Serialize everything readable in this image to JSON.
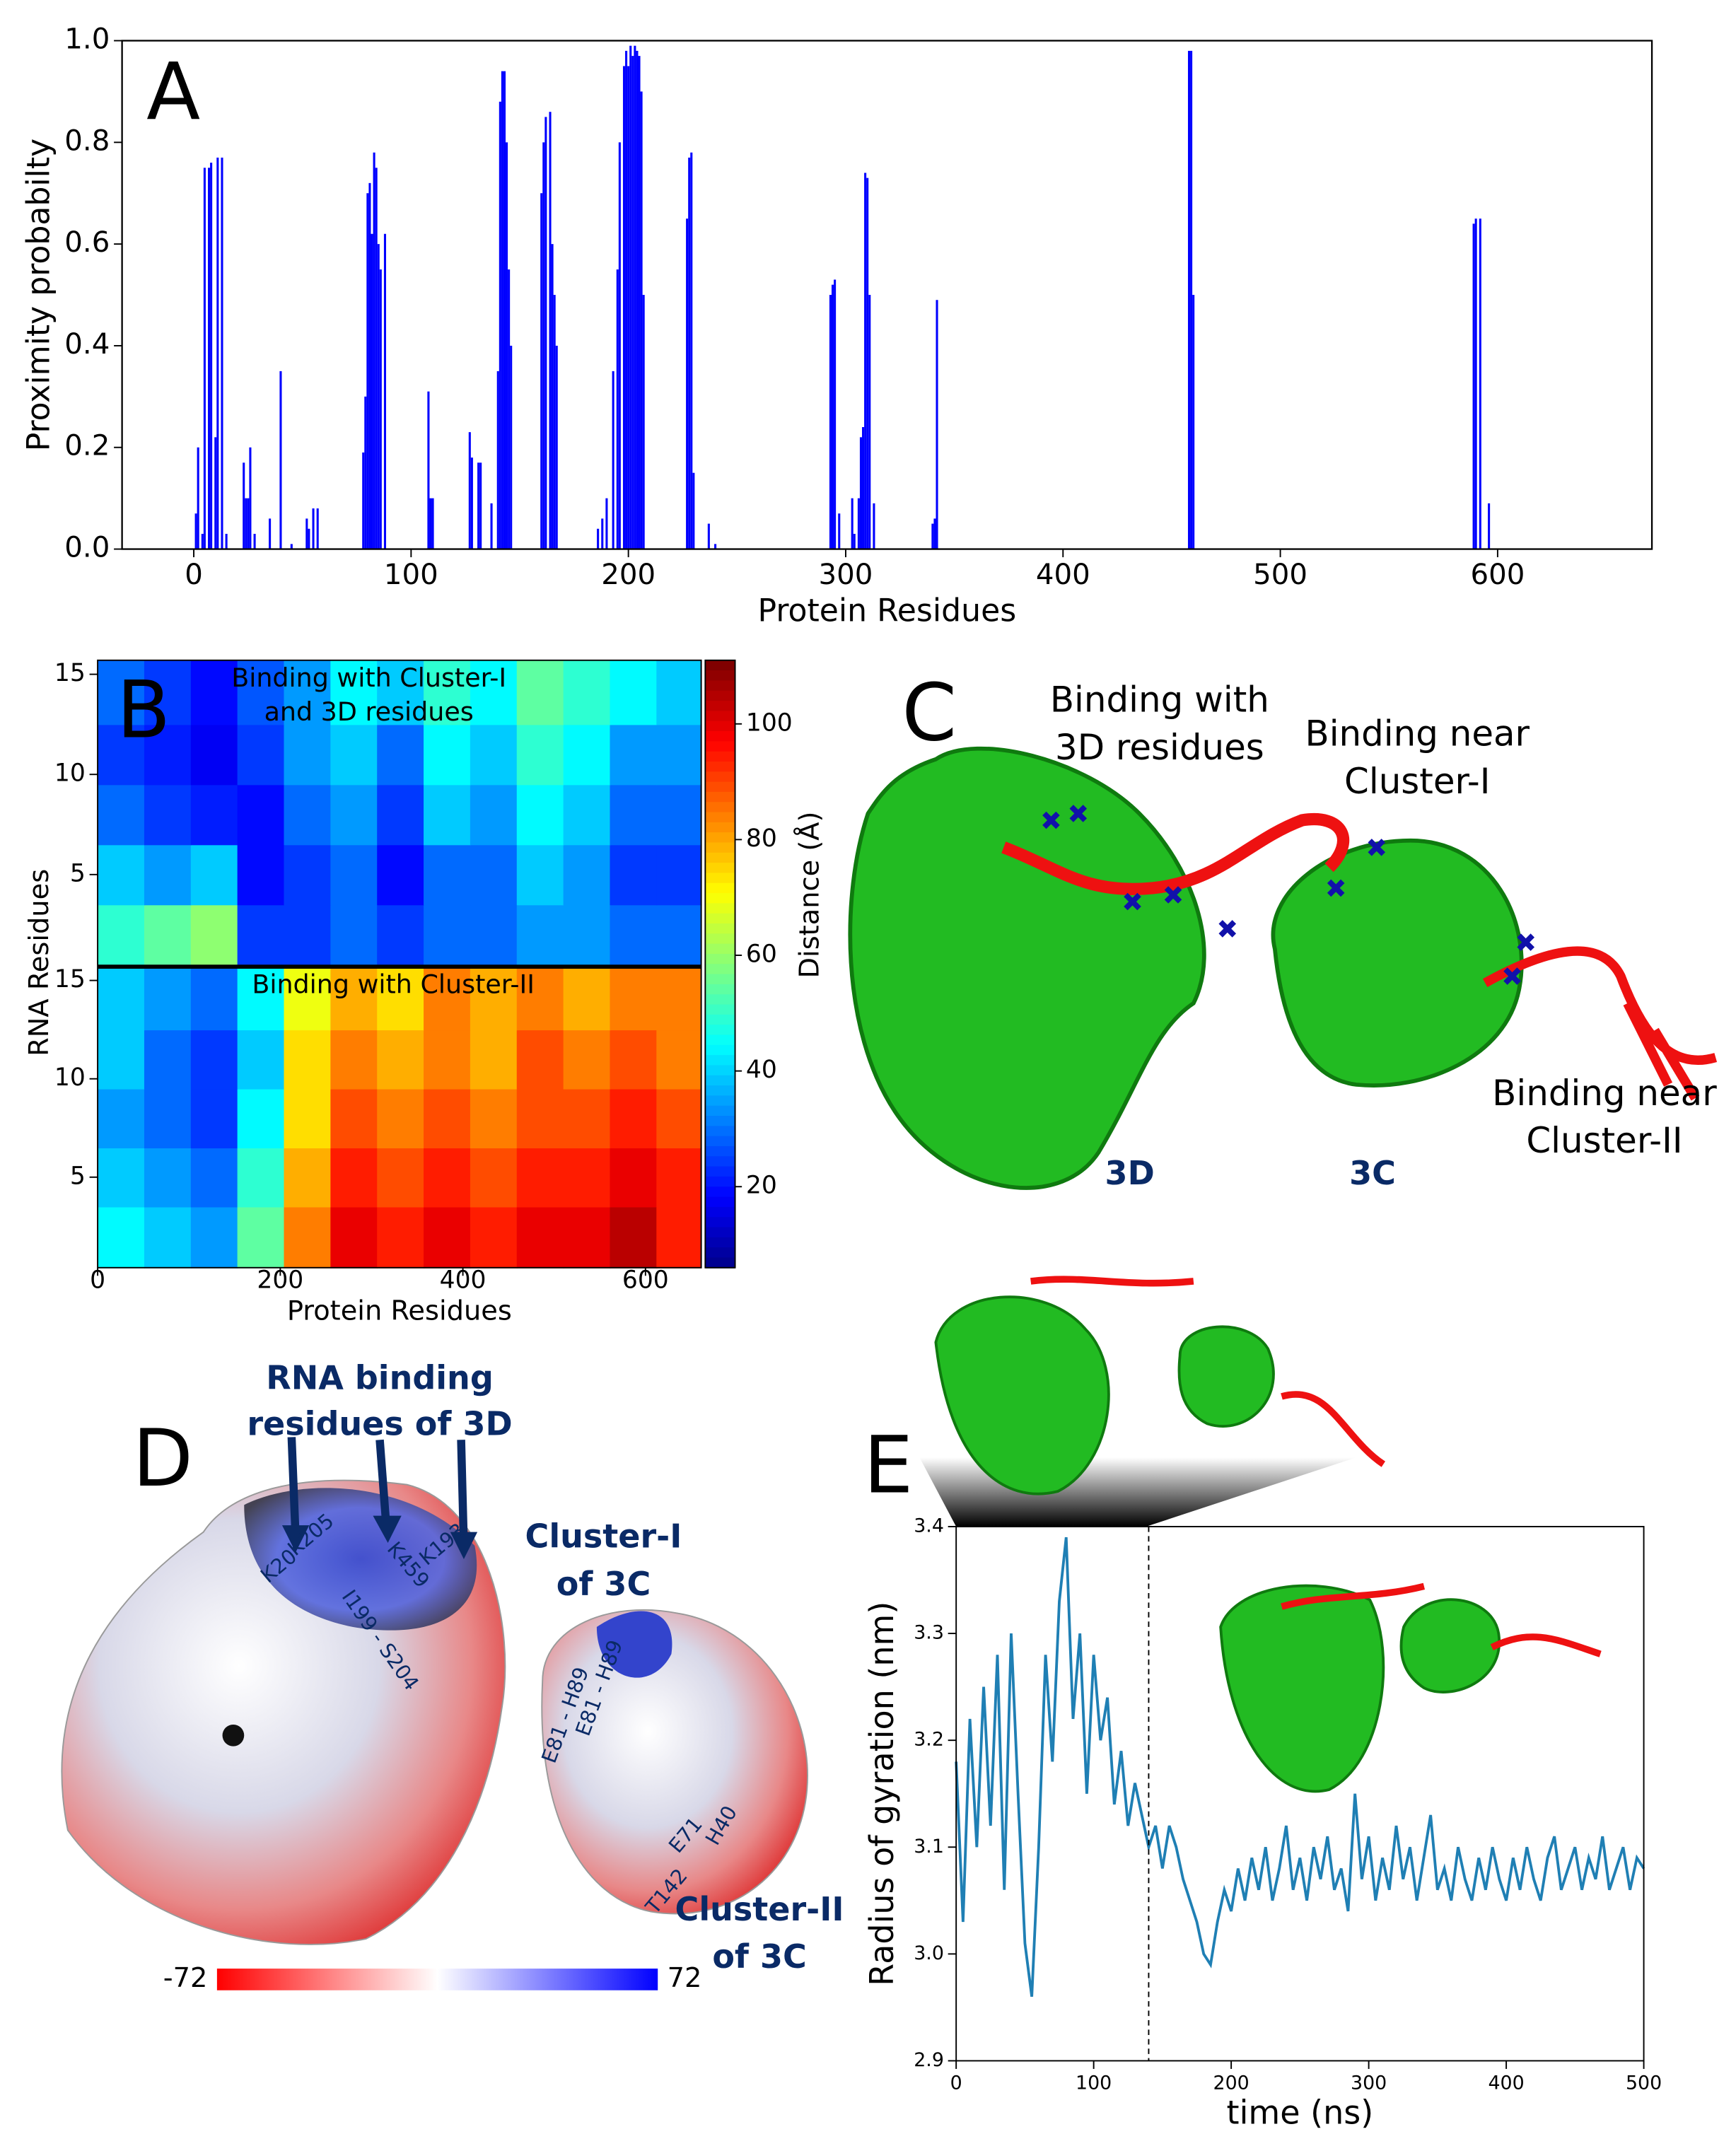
{
  "chart_data": [
    {
      "type": "bar",
      "label": "A",
      "xlabel": "Protein Residues",
      "ylabel": "Proximity probabilty",
      "color": "#0000ff",
      "xlim": [
        -33,
        671
      ],
      "xticks": [
        0,
        100,
        200,
        300,
        400,
        500,
        600
      ],
      "ylim": [
        0,
        1
      ],
      "yticks": [
        {
          "value": 0,
          "label": "0.0"
        },
        0.2,
        0.4,
        0.6,
        0.8,
        {
          "value": 1,
          "label": "1.0"
        }
      ],
      "x": [
        1,
        2,
        4,
        5,
        7,
        8,
        10,
        11,
        13,
        15,
        23,
        24,
        25,
        26,
        28,
        35,
        40,
        45,
        52,
        53,
        55,
        57,
        78,
        79,
        80,
        81,
        82,
        83,
        84,
        85,
        86,
        88,
        108,
        109,
        110,
        127,
        128,
        131,
        132,
        137,
        140,
        141,
        142,
        143,
        144,
        145,
        146,
        160,
        161,
        162,
        164,
        165,
        166,
        167,
        186,
        188,
        190,
        193,
        195,
        196,
        198,
        199,
        200,
        201,
        202,
        203,
        204,
        205,
        206,
        207,
        227,
        228,
        229,
        230,
        237,
        240,
        293,
        294,
        295,
        297,
        303,
        304,
        306,
        307,
        308,
        309,
        310,
        311,
        313,
        340,
        341,
        342,
        458,
        459,
        460,
        589,
        590,
        592,
        596
      ],
      "values": [
        0.07,
        0.2,
        0.03,
        0.75,
        0.75,
        0.76,
        0.22,
        0.77,
        0.77,
        0.03,
        0.17,
        0.1,
        0.1,
        0.2,
        0.03,
        0.06,
        0.35,
        0.01,
        0.06,
        0.04,
        0.08,
        0.08,
        0.19,
        0.3,
        0.7,
        0.72,
        0.62,
        0.78,
        0.75,
        0.6,
        0.55,
        0.62,
        0.31,
        0.1,
        0.1,
        0.23,
        0.18,
        0.17,
        0.17,
        0.09,
        0.35,
        0.88,
        0.94,
        0.94,
        0.8,
        0.55,
        0.4,
        0.7,
        0.8,
        0.85,
        0.86,
        0.6,
        0.5,
        0.4,
        0.04,
        0.06,
        0.1,
        0.35,
        0.55,
        0.8,
        0.95,
        0.98,
        0.95,
        0.99,
        0.97,
        0.99,
        0.98,
        0.97,
        0.9,
        0.5,
        0.65,
        0.77,
        0.78,
        0.15,
        0.05,
        0.01,
        0.5,
        0.52,
        0.53,
        0.07,
        0.1,
        0.03,
        0.1,
        0.22,
        0.24,
        0.74,
        0.73,
        0.5,
        0.09,
        0.05,
        0.06,
        0.49,
        0.98,
        0.98,
        0.5,
        0.64,
        0.65,
        0.65,
        0.09
      ]
    },
    {
      "type": "heatmap",
      "label": "B",
      "xlabel": "Protein Residues",
      "ylabel": "RNA Residues",
      "colorbar_label": "Distance (Å)",
      "xlim": [
        0,
        661
      ],
      "xticks": [
        0,
        200,
        400,
        600
      ],
      "ylim": [
        0.4,
        15.7
      ],
      "yticks": [
        5,
        10,
        15
      ],
      "clim": [
        6,
        111
      ],
      "cticks": [
        20,
        40,
        60,
        80,
        100
      ],
      "xbins": [
        0,
        51,
        102,
        153,
        204,
        255,
        306,
        357,
        408,
        459,
        510,
        561,
        612,
        661
      ],
      "ybins": [
        0.4,
        3.5,
        6.5,
        9.5,
        12.5,
        15.7
      ],
      "panels": [
        {
          "annotation": [
            "Binding with Cluster-I",
            "and 3D residues"
          ],
          "rows": [
            [
              50,
              55,
              60,
              25,
              25,
              30,
              25,
              30,
              30,
              35,
              35,
              30,
              30
            ],
            [
              40,
              35,
              40,
              20,
              25,
              30,
              20,
              30,
              30,
              40,
              35,
              25,
              25
            ],
            [
              30,
              25,
              22,
              20,
              30,
              35,
              25,
              40,
              35,
              45,
              40,
              30,
              30
            ],
            [
              25,
              22,
              18,
              25,
              35,
              40,
              30,
              45,
              40,
              50,
              45,
              35,
              35
            ],
            [
              30,
              25,
              20,
              28,
              35,
              45,
              40,
              50,
              45,
              55,
              50,
              45,
              40
            ]
          ]
        },
        {
          "annotation": [
            "Binding with Cluster-II"
          ],
          "rows": [
            [
              45,
              40,
              35,
              55,
              85,
              100,
              95,
              100,
              95,
              100,
              100,
              105,
              95
            ],
            [
              40,
              35,
              30,
              50,
              80,
              95,
              90,
              95,
              90,
              95,
              95,
              100,
              95
            ],
            [
              35,
              30,
              25,
              45,
              75,
              90,
              85,
              90,
              85,
              90,
              90,
              95,
              90
            ],
            [
              40,
              30,
              25,
              40,
              75,
              85,
              80,
              85,
              80,
              90,
              85,
              90,
              85
            ],
            [
              40,
              35,
              30,
              45,
              70,
              80,
              75,
              85,
              80,
              85,
              80,
              85,
              85
            ]
          ]
        }
      ]
    },
    {
      "type": "line",
      "label": "E",
      "xlabel": "time (ns)",
      "ylabel": "Radius of gyration (nm)",
      "color": "#1f7fb4",
      "xlim": [
        0,
        500
      ],
      "xticks": [
        0,
        100,
        200,
        300,
        400,
        500
      ],
      "ylim": [
        2.9,
        3.4
      ],
      "yticks": [
        2.9,
        {
          "value": 3,
          "label": "3.0"
        },
        3.1,
        3.2,
        3.3,
        3.4
      ],
      "vline": 140,
      "x": [
        0,
        5,
        10,
        15,
        20,
        25,
        30,
        35,
        40,
        45,
        50,
        55,
        60,
        65,
        70,
        75,
        80,
        85,
        90,
        95,
        100,
        105,
        110,
        115,
        120,
        125,
        130,
        135,
        140,
        145,
        150,
        155,
        160,
        165,
        170,
        175,
        180,
        185,
        190,
        195,
        200,
        205,
        210,
        215,
        220,
        225,
        230,
        235,
        240,
        245,
        250,
        255,
        260,
        265,
        270,
        275,
        280,
        285,
        290,
        295,
        300,
        305,
        310,
        315,
        320,
        325,
        330,
        335,
        340,
        345,
        350,
        355,
        360,
        365,
        370,
        375,
        380,
        385,
        390,
        395,
        400,
        405,
        410,
        415,
        420,
        425,
        430,
        435,
        440,
        445,
        450,
        455,
        460,
        465,
        470,
        475,
        480,
        485,
        490,
        495,
        500
      ],
      "values": [
        3.18,
        3.03,
        3.22,
        3.1,
        3.25,
        3.12,
        3.28,
        3.06,
        3.3,
        3.15,
        3.01,
        2.96,
        3.1,
        3.28,
        3.18,
        3.33,
        3.39,
        3.22,
        3.3,
        3.15,
        3.28,
        3.2,
        3.24,
        3.14,
        3.19,
        3.12,
        3.16,
        3.13,
        3.1,
        3.12,
        3.08,
        3.12,
        3.1,
        3.07,
        3.05,
        3.03,
        3.0,
        2.99,
        3.03,
        3.06,
        3.04,
        3.08,
        3.05,
        3.09,
        3.06,
        3.1,
        3.05,
        3.08,
        3.12,
        3.06,
        3.09,
        3.05,
        3.1,
        3.07,
        3.11,
        3.06,
        3.08,
        3.04,
        3.15,
        3.07,
        3.11,
        3.05,
        3.09,
        3.06,
        3.12,
        3.07,
        3.1,
        3.05,
        3.09,
        3.13,
        3.06,
        3.08,
        3.05,
        3.1,
        3.07,
        3.05,
        3.09,
        3.06,
        3.1,
        3.07,
        3.05,
        3.09,
        3.06,
        3.1,
        3.07,
        3.05,
        3.09,
        3.11,
        3.06,
        3.08,
        3.1,
        3.06,
        3.09,
        3.07,
        3.11,
        3.06,
        3.08,
        3.1,
        3.06,
        3.09,
        3.08
      ]
    }
  ],
  "panel_c": {
    "label": "C",
    "binding_3d": [
      "Binding with",
      "3D residues"
    ],
    "binding_c1": [
      "Binding near",
      "Cluster-I"
    ],
    "binding_c2": [
      "Binding near",
      "Cluster-II"
    ],
    "label_3d": "3D",
    "label_3c": "3C"
  },
  "panel_d": {
    "label": "D",
    "title": [
      "RNA binding",
      "residues of 3D"
    ],
    "cluster1": [
      "Cluster-I",
      "of 3C"
    ],
    "cluster2": [
      "Cluster-II",
      "of 3C"
    ],
    "residues": [
      "K205",
      "K20",
      "I199 - S204",
      "K459",
      "K193",
      "E81 - H89",
      "E81 - H89",
      "E71",
      "H40",
      "T142"
    ],
    "colorbar": {
      "min": -72,
      "max": 72
    }
  }
}
